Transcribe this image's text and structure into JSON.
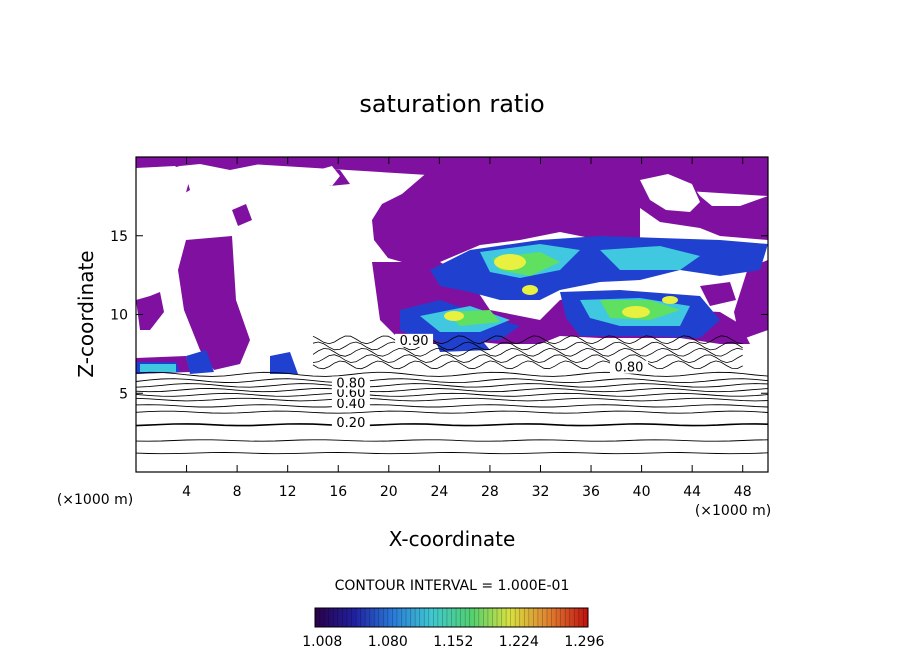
{
  "chart_data": {
    "type": "heatmap",
    "title": "saturation ratio",
    "xlabel": "X-coordinate",
    "ylabel": "Z-coordinate",
    "x_unit_left": "(×1000 m)",
    "x_unit_right": "(×1000 m)",
    "xlim": [
      0,
      50
    ],
    "ylim": [
      0,
      20
    ],
    "x_ticks": [
      4,
      8,
      12,
      16,
      20,
      24,
      28,
      32,
      36,
      40,
      44,
      48
    ],
    "y_ticks": [
      5,
      10,
      15
    ],
    "contour_interval_text": "CONTOUR INTERVAL = 1.000E-01",
    "contour_labels": [
      {
        "text": "0.20",
        "x": 17.0,
        "z": 3.0
      },
      {
        "text": "0.40",
        "x": 17.0,
        "z": 4.2
      },
      {
        "text": "0.60",
        "x": 17.0,
        "z": 4.9
      },
      {
        "text": "0.80",
        "x": 17.0,
        "z": 5.5
      },
      {
        "text": "0.80",
        "x": 39.0,
        "z": 6.5
      },
      {
        "text": "0.90",
        "x": 22.0,
        "z": 8.2
      }
    ],
    "colorbar": {
      "labels": [
        "1.008",
        "1.080",
        "1.152",
        "1.224",
        "1.296"
      ],
      "range": [
        1.0,
        1.3
      ],
      "colors": [
        "#2a0048",
        "#2020a0",
        "#2a7ad8",
        "#40c8d0",
        "#50d070",
        "#d8e040",
        "#e08030",
        "#c01010"
      ]
    },
    "fill_colors": {
      "supersaturated_low": "#8010a0",
      "moderate": "#2040d0",
      "cyan": "#40c8e0",
      "green": "#60e060",
      "yellow": "#e8f040"
    }
  }
}
